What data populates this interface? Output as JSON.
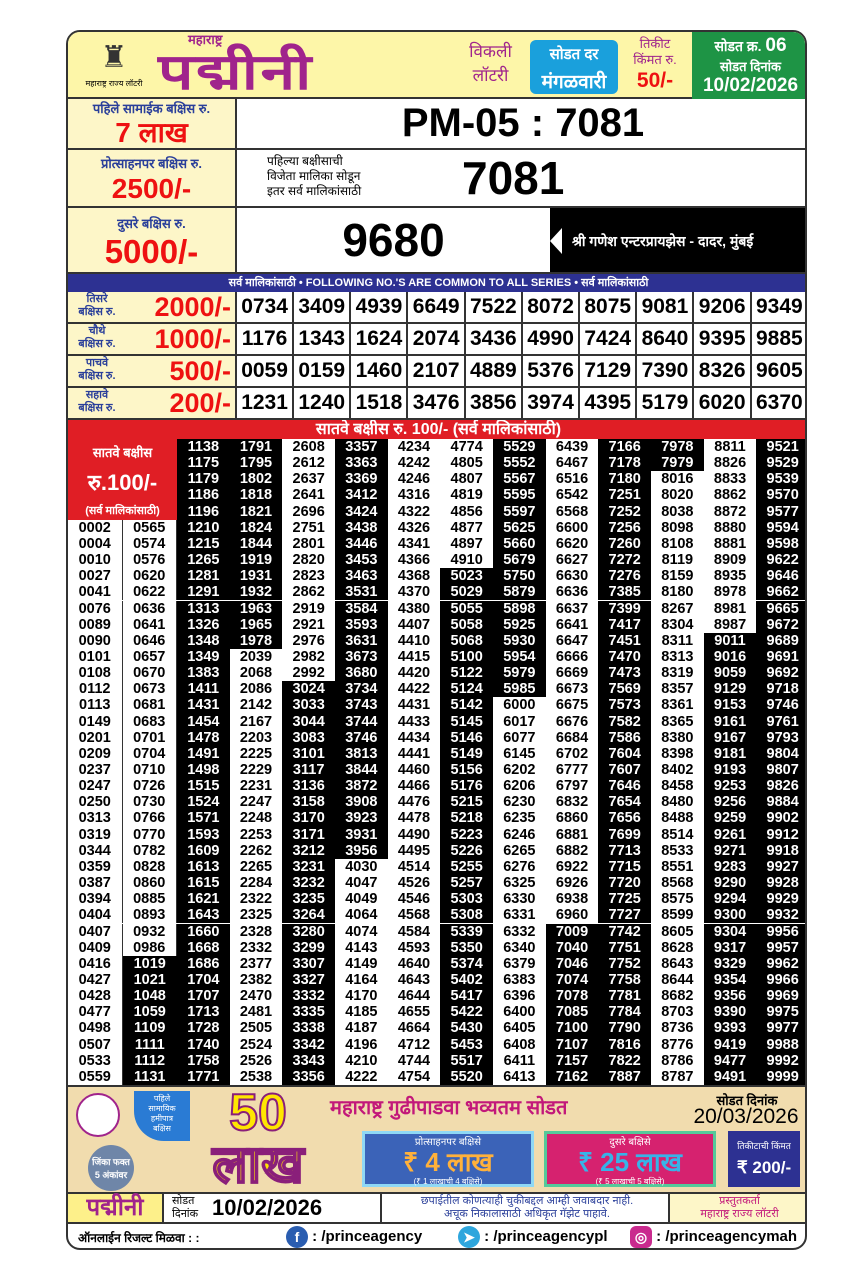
{
  "header": {
    "logo_caption": "महाराष्ट्र राज्य लॉटरी",
    "title_small": "महाराष्ट्र",
    "title": "पद्मीनी",
    "weekly": [
      "विकली",
      "लॉटरी"
    ],
    "draw_day_label": "सोडत दर",
    "draw_day": "मंगळवारी",
    "ticket_price_label": [
      "तिकीट",
      "किंमत रु."
    ],
    "ticket_price": "50/-",
    "draw_no_label": "सोडत क्र.",
    "draw_no": "06",
    "draw_date_label": "सोडत दिनांक",
    "draw_date": "10/02/2026"
  },
  "first_prize": {
    "label": "पहिले सामाईक बक्षिस रु.",
    "amount": "7 लाख",
    "number": "PM-05 : 7081"
  },
  "consolation_prize": {
    "label": "प्रोत्साहनपर बक्षिस रु.",
    "amount": "2500/-",
    "note": [
      "पहिल्या बक्षीसाची",
      "विजेता मालिका सोडून",
      "इतर सर्व मालिकांसाठी"
    ],
    "number": "7081"
  },
  "second_prize": {
    "label": "दुसरे बक्षिस रु.",
    "amount": "5000/-",
    "number": "9680",
    "agent": "श्री गणेश एन्टरप्रायझेस - दादर, मुंबई"
  },
  "common_banner": "सर्व मालिकांसाठी  •  FOLLOWING NO.'S ARE COMMON TO ALL SERIES  •  सर्व मालिकांसाठी",
  "prizes": [
    {
      "label": [
        "तिसरे",
        "बक्षिस रु."
      ],
      "amount": "2000/-",
      "numbers": [
        "0734",
        "3409",
        "4939",
        "6649",
        "7522",
        "8072",
        "8075",
        "9081",
        "9206",
        "9349"
      ]
    },
    {
      "label": [
        "चौथे",
        "बक्षिस रु."
      ],
      "amount": "1000/-",
      "numbers": [
        "1176",
        "1343",
        "1624",
        "2074",
        "3436",
        "4990",
        "7424",
        "8640",
        "9395",
        "9885"
      ]
    },
    {
      "label": [
        "पाचवे",
        "बक्षिस रु."
      ],
      "amount": "500/-",
      "numbers": [
        "0059",
        "0159",
        "1460",
        "2107",
        "4889",
        "5376",
        "7129",
        "7390",
        "8326",
        "9605"
      ]
    },
    {
      "label": [
        "सहावे",
        "बक्षिस रु."
      ],
      "amount": "200/-",
      "numbers": [
        "1231",
        "1240",
        "1518",
        "3476",
        "3856",
        "3974",
        "4395",
        "5179",
        "6020",
        "6370"
      ]
    }
  ],
  "seventh_prize": {
    "banner": "सातवे बक्षीस रु. 100/-  (सर्व मालिकांसाठी)",
    "side_label": "सातवे बक्षीस",
    "side_amount": "रु.100/-",
    "side_note": "(सर्व मालिकांसाठी)",
    "columns": [
      [
        "0002",
        "0004",
        "0010",
        "0027",
        "0041",
        "0076",
        "0089",
        "0090",
        "0101",
        "0108",
        "0112",
        "0113",
        "0149",
        "0201",
        "0209",
        "0237",
        "0247",
        "0250",
        "0313",
        "0319",
        "0344",
        "0359",
        "0387",
        "0394",
        "0404",
        "0407",
        "0409",
        "0416",
        "0427",
        "0428",
        "0477",
        "0498",
        "0507",
        "0533",
        "0559"
      ],
      [
        "0565",
        "0574",
        "0576",
        "0620",
        "0622",
        "0636",
        "0641",
        "0646",
        "0657",
        "0670",
        "0673",
        "0681",
        "0683",
        "0701",
        "0704",
        "0710",
        "0726",
        "0730",
        "0766",
        "0770",
        "0782",
        "0828",
        "0860",
        "0885",
        "0893",
        "0932",
        "0986",
        "1019",
        "1021",
        "1048",
        "1059",
        "1109",
        "1111",
        "1112",
        "1131"
      ],
      [
        "1138",
        "1175",
        "1179",
        "1186",
        "1196",
        "1210",
        "1215",
        "1265",
        "1281",
        "1291",
        "1313",
        "1326",
        "1348",
        "1349",
        "1383",
        "1411",
        "1431",
        "1454",
        "1478",
        "1491",
        "1498",
        "1515",
        "1524",
        "1571",
        "1593",
        "1609",
        "1613",
        "1615",
        "1621",
        "1643",
        "1660",
        "1668",
        "1686",
        "1704",
        "1707",
        "1713",
        "1728",
        "1740",
        "1758",
        "1771"
      ],
      [
        "1791",
        "1795",
        "1802",
        "1818",
        "1821",
        "1824",
        "1844",
        "1919",
        "1931",
        "1932",
        "1963",
        "1965",
        "1978",
        "2039",
        "2068",
        "2086",
        "2142",
        "2167",
        "2203",
        "2225",
        "2229",
        "2231",
        "2247",
        "2248",
        "2253",
        "2262",
        "2265",
        "2284",
        "2322",
        "2325",
        "2328",
        "2332",
        "2377",
        "2382",
        "2470",
        "2481",
        "2505",
        "2524",
        "2526",
        "2538"
      ],
      [
        "2608",
        "2612",
        "2637",
        "2641",
        "2696",
        "2751",
        "2801",
        "2820",
        "2823",
        "2862",
        "2919",
        "2921",
        "2976",
        "2982",
        "2992",
        "3024",
        "3033",
        "3044",
        "3083",
        "3101",
        "3117",
        "3136",
        "3158",
        "3170",
        "3171",
        "3212",
        "3231",
        "3232",
        "3235",
        "3264",
        "3280",
        "3299",
        "3307",
        "3327",
        "3332",
        "3335",
        "3338",
        "3342",
        "3343",
        "3356"
      ],
      [
        "3357",
        "3363",
        "3369",
        "3412",
        "3424",
        "3438",
        "3446",
        "3453",
        "3463",
        "3531",
        "3584",
        "3593",
        "3631",
        "3673",
        "3680",
        "3734",
        "3743",
        "3744",
        "3746",
        "3813",
        "3844",
        "3872",
        "3908",
        "3923",
        "3931",
        "3956",
        "4030",
        "4047",
        "4049",
        "4064",
        "4074",
        "4143",
        "4149",
        "4164",
        "4170",
        "4185",
        "4187",
        "4196",
        "4210",
        "4222"
      ],
      [
        "4234",
        "4242",
        "4246",
        "4316",
        "4322",
        "4326",
        "4341",
        "4366",
        "4368",
        "4370",
        "4380",
        "4407",
        "4410",
        "4415",
        "4420",
        "4422",
        "4431",
        "4433",
        "4434",
        "4441",
        "4460",
        "4466",
        "4476",
        "4478",
        "4490",
        "4495",
        "4514",
        "4526",
        "4546",
        "4568",
        "4584",
        "4593",
        "4640",
        "4643",
        "4644",
        "4655",
        "4664",
        "4712",
        "4744",
        "4754"
      ],
      [
        "4774",
        "4805",
        "4807",
        "4819",
        "4856",
        "4877",
        "4897",
        "4910",
        "5023",
        "5029",
        "5055",
        "5058",
        "5068",
        "5100",
        "5122",
        "5124",
        "5142",
        "5145",
        "5146",
        "5149",
        "5156",
        "5176",
        "5215",
        "5218",
        "5223",
        "5226",
        "5255",
        "5257",
        "5303",
        "5308",
        "5339",
        "5350",
        "5374",
        "5402",
        "5417",
        "5422",
        "5430",
        "5453",
        "5517",
        "5520"
      ],
      [
        "5529",
        "5552",
        "5567",
        "5595",
        "5597",
        "5625",
        "5660",
        "5679",
        "5750",
        "5879",
        "5898",
        "5925",
        "5930",
        "5954",
        "5979",
        "5985",
        "6000",
        "6017",
        "6077",
        "6145",
        "6202",
        "6206",
        "6230",
        "6235",
        "6246",
        "6265",
        "6276",
        "6325",
        "6330",
        "6331",
        "6332",
        "6340",
        "6379",
        "6383",
        "6396",
        "6400",
        "6405",
        "6408",
        "6411",
        "6413"
      ],
      [
        "6439",
        "6467",
        "6516",
        "6542",
        "6568",
        "6600",
        "6620",
        "6627",
        "6630",
        "6636",
        "6637",
        "6641",
        "6647",
        "6666",
        "6669",
        "6673",
        "6675",
        "6676",
        "6684",
        "6702",
        "6777",
        "6797",
        "6832",
        "6860",
        "6881",
        "6882",
        "6922",
        "6926",
        "6938",
        "6960",
        "7009",
        "7040",
        "7046",
        "7074",
        "7078",
        "7085",
        "7100",
        "7107",
        "7157",
        "7162"
      ],
      [
        "7166",
        "7178",
        "7180",
        "7251",
        "7252",
        "7256",
        "7260",
        "7272",
        "7276",
        "7385",
        "7399",
        "7417",
        "7451",
        "7470",
        "7473",
        "7569",
        "7573",
        "7582",
        "7586",
        "7604",
        "7607",
        "7646",
        "7654",
        "7656",
        "7699",
        "7713",
        "7715",
        "7720",
        "7725",
        "7727",
        "7742",
        "7751",
        "7752",
        "7758",
        "7781",
        "7784",
        "7790",
        "7816",
        "7822",
        "7887"
      ],
      [
        "7978",
        "7979",
        "8016",
        "8020",
        "8038",
        "8098",
        "8108",
        "8119",
        "8159",
        "8180",
        "8267",
        "8304",
        "8311",
        "8313",
        "8319",
        "8357",
        "8361",
        "8365",
        "8380",
        "8398",
        "8402",
        "8458",
        "8480",
        "8488",
        "8514",
        "8533",
        "8551",
        "8568",
        "8575",
        "8599",
        "8605",
        "8628",
        "8643",
        "8644",
        "8682",
        "8703",
        "8736",
        "8776",
        "8786",
        "8787"
      ],
      [
        "8811",
        "8826",
        "8833",
        "8862",
        "8872",
        "8880",
        "8881",
        "8909",
        "8935",
        "8978",
        "8981",
        "8987",
        "9011",
        "9016",
        "9059",
        "9129",
        "9153",
        "9161",
        "9167",
        "9181",
        "9193",
        "9253",
        "9256",
        "9259",
        "9261",
        "9271",
        "9283",
        "9290",
        "9294",
        "9300",
        "9304",
        "9317",
        "9329",
        "9354",
        "9356",
        "9390",
        "9393",
        "9419",
        "9477",
        "9491"
      ],
      [
        "9521",
        "9529",
        "9539",
        "9570",
        "9577",
        "9594",
        "9598",
        "9622",
        "9646",
        "9662",
        "9665",
        "9672",
        "9689",
        "9691",
        "9692",
        "9718",
        "9746",
        "9761",
        "9793",
        "9804",
        "9807",
        "9826",
        "9884",
        "9902",
        "9912",
        "9918",
        "9927",
        "9928",
        "9929",
        "9932",
        "9956",
        "9957",
        "9962",
        "9966",
        "9969",
        "9975",
        "9977",
        "9988",
        "9992",
        "9999"
      ]
    ]
  },
  "promo": {
    "badge": [
      "पहिले",
      "सामायिक",
      "हमीपात्र",
      "बक्षिस"
    ],
    "jinka": [
      "जिंका फक्त",
      "5 अंकांवर"
    ],
    "big_amount": [
      "50",
      "लाख"
    ],
    "headline": "महाराष्ट्र गुढीपाडवा भव्यतम सोडत",
    "draw_date_label": "सोडत दिनांक",
    "draw_date": "20/03/2026",
    "prize_a": {
      "label": "प्रोत्साहनपर बक्षिसे",
      "amount": "₹ 4 लाख",
      "note": "(₹ 1 लाखाची 4 बक्षिसे)"
    },
    "prize_b": {
      "label": "दुसरे बक्षिसे",
      "amount": "₹ 25 लाख",
      "note": "(₹ 5 लाखाची 5 बक्षिसे)"
    },
    "ticket_price_label": "तिकीटाची किंमत",
    "ticket_price": "₹ 200/-"
  },
  "footer": {
    "brand": "पद्मीनी",
    "date_label": [
      "सोडत",
      "दिनांक"
    ],
    "date": "10/02/2026",
    "disclaimer": [
      "छपाईतील कोणत्याही चुकीबद्दल आम्ही जवाबदार नाही.",
      "अचूक निकालासाठी अधिकृत गॅझेट पाहावे."
    ],
    "presenter_label": "प्रस्तुतकर्ता",
    "presenter": "महाराष्ट्र राज्य लॉटरी"
  },
  "social": {
    "label": "ऑनलाईन रिजल्ट मिळवा :  :",
    "facebook": ": /princeagency",
    "telegram": ": /princeagencypl",
    "instagram": ": /princeagencymah"
  },
  "colors": {
    "brand_purple": "#a0248c",
    "prize_red": "#e01e25",
    "banner_blue": "#2d3192",
    "label_blue": "#2a3f9a",
    "green": "#1e9445",
    "sky": "#1aa0dc"
  }
}
